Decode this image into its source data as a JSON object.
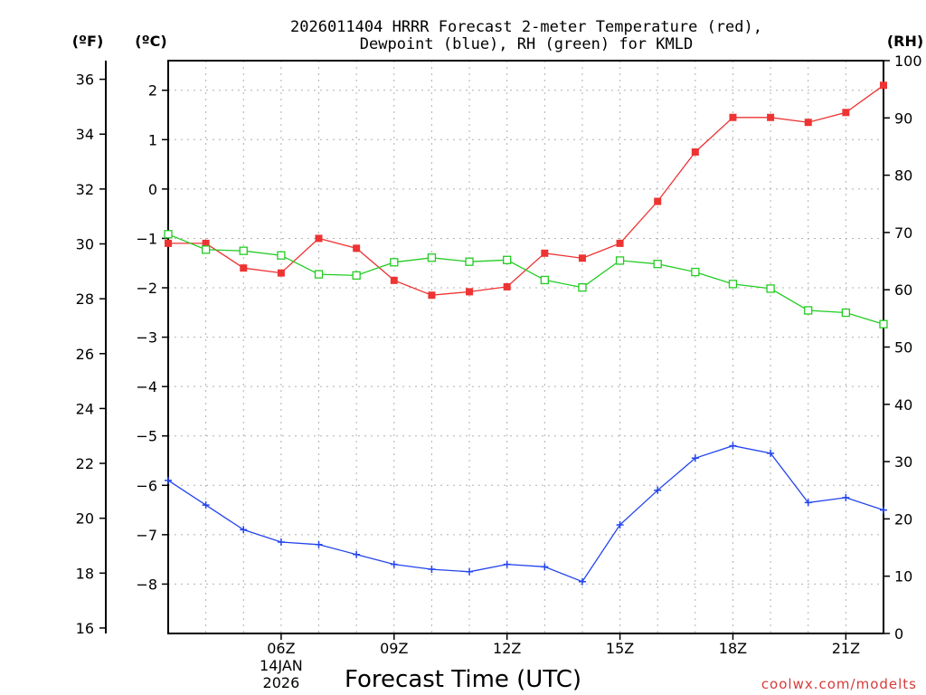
{
  "chart_data": {
    "type": "line",
    "title_line1": "2026011404 HRRR Forecast 2-meter Temperature (red),",
    "title_line2": "Dewpoint (blue), RH (green) for KMLD",
    "xlabel": "Forecast Time (UTC)",
    "credit": "coolwx.com/modelts",
    "unit_labels": {
      "fahrenheit": "(ºF)",
      "celsius": "(ºC)",
      "rh": "(RH)"
    },
    "x_hours": [
      3,
      4,
      5,
      6,
      7,
      8,
      9,
      10,
      11,
      12,
      13,
      14,
      15,
      16,
      17,
      18,
      19,
      20,
      21,
      22
    ],
    "x_range": [
      3,
      22
    ],
    "x_ticks": [
      {
        "hour": 6,
        "label": "06Z",
        "date": "14JAN",
        "year": "2026"
      },
      {
        "hour": 9,
        "label": "09Z"
      },
      {
        "hour": 12,
        "label": "12Z"
      },
      {
        "hour": 15,
        "label": "15Z"
      },
      {
        "hour": 18,
        "label": "18Z"
      },
      {
        "hour": 21,
        "label": "21Z"
      }
    ],
    "y_celsius": {
      "range": [
        -9.0,
        2.6
      ],
      "ticks": [
        "2",
        "1",
        "0",
        "−1",
        "−2",
        "−3",
        "−4",
        "−5",
        "−6",
        "−7",
        "−8"
      ]
    },
    "y_fahrenheit": {
      "range": [
        15.8,
        36.68
      ],
      "ticks": [
        "36",
        "34",
        "32",
        "30",
        "28",
        "26",
        "24",
        "22",
        "20",
        "18",
        "16"
      ]
    },
    "y_rh": {
      "range": [
        0,
        100
      ],
      "ticks": [
        "100",
        "90",
        "80",
        "70",
        "60",
        "50",
        "40",
        "30",
        "20",
        "10",
        "0"
      ]
    },
    "grid": true,
    "series": [
      {
        "name": "2-meter Temperature",
        "color": "#ee3333",
        "axis": "celsius",
        "marker": "filled-square",
        "values": [
          -1.1,
          -1.1,
          -1.6,
          -1.7,
          -1.0,
          -1.2,
          -1.85,
          -2.15,
          -2.08,
          -1.98,
          -1.3,
          -1.4,
          -1.1,
          -0.25,
          0.75,
          1.45,
          1.45,
          1.35,
          1.55,
          2.1
        ]
      },
      {
        "name": "Dewpoint",
        "color": "#2244ee",
        "axis": "celsius",
        "marker": "plus",
        "values": [
          -5.9,
          -6.4,
          -6.9,
          -7.15,
          -7.2,
          -7.4,
          -7.6,
          -7.7,
          -7.75,
          -7.6,
          -7.65,
          -7.95,
          -6.8,
          -6.1,
          -5.45,
          -5.2,
          -5.35,
          -6.35,
          -6.25,
          -6.5
        ]
      },
      {
        "name": "RH",
        "color": "#22cc22",
        "axis": "rh",
        "marker": "open-square",
        "values": [
          69.7,
          67.0,
          66.8,
          66.0,
          62.7,
          62.5,
          64.8,
          65.6,
          64.9,
          65.2,
          61.7,
          60.4,
          65.1,
          64.5,
          63.1,
          61.0,
          60.2,
          56.4,
          56.0,
          54.0
        ]
      }
    ]
  }
}
